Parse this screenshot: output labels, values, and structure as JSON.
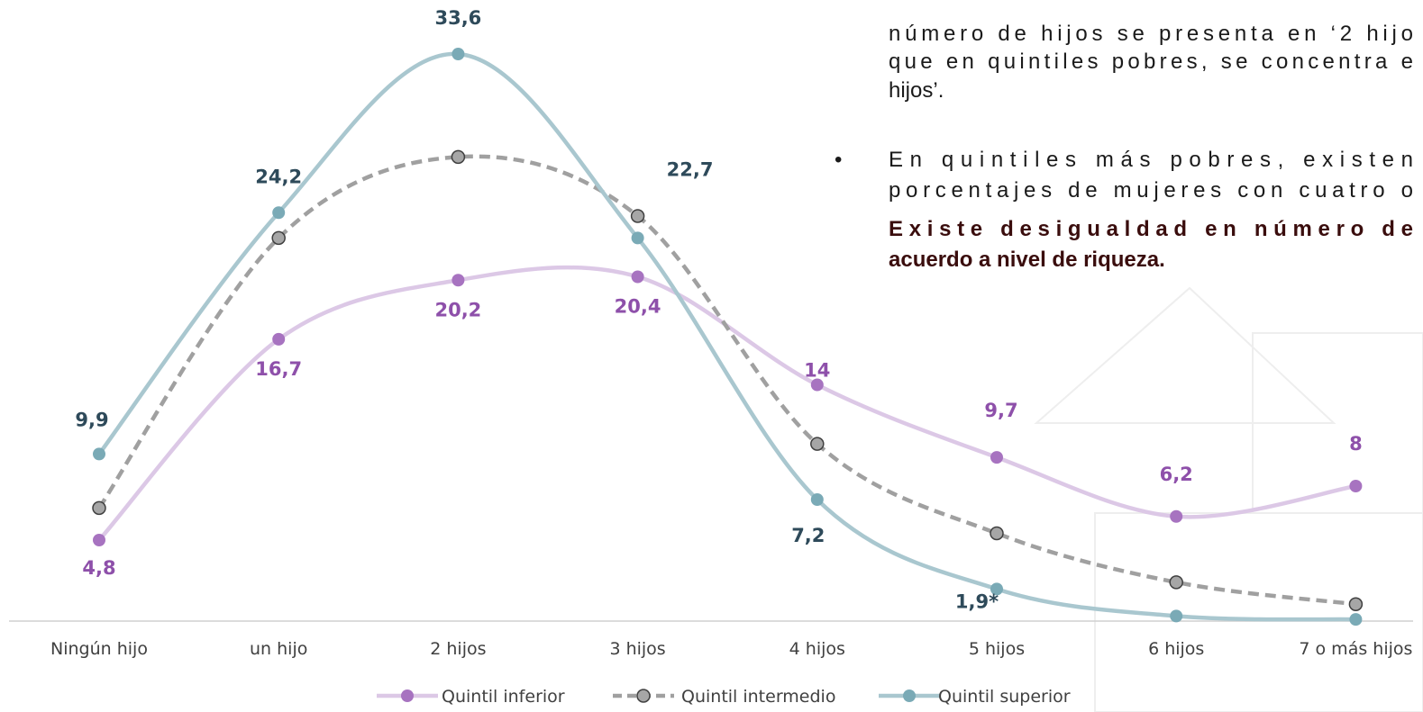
{
  "chart_data": {
    "type": "line",
    "categories": [
      "Ningún hijo",
      "un hijo",
      "2 hijos",
      "3 hijos",
      "4 hijos",
      "5 hijos",
      "6 hijos",
      "7 o más hijos"
    ],
    "ylim": [
      0,
      36.8
    ],
    "series": [
      {
        "name": "Quintil inferior",
        "color": "#a773c0",
        "line_color": "#dcc8e6",
        "dashed": false,
        "values": [
          4.8,
          16.7,
          20.2,
          20.4,
          14,
          9.7,
          6.2,
          8
        ],
        "value_labels": [
          "4,8",
          "16,7",
          "20,2",
          "20,4",
          "14",
          "9,7",
          "6,2",
          "8"
        ]
      },
      {
        "name": "Quintil intermedio",
        "color": "#a6a6a6",
        "line_color": "#a0a0a0",
        "dashed": true,
        "values": [
          6.7,
          22.7,
          27.5,
          24.0,
          10.5,
          5.2,
          2.3,
          1.0
        ]
      },
      {
        "name": "Quintil superior",
        "color": "#7aaab6",
        "line_color": "#a9c7cf",
        "dashed": false,
        "values": [
          9.9,
          24.2,
          33.6,
          22.7,
          7.2,
          1.9,
          0.3,
          0.1
        ],
        "value_labels": [
          "9,9",
          "24,2",
          "33,6",
          "22,7",
          "7,2",
          "1,9*",
          null,
          null
        ]
      }
    ]
  },
  "text": {
    "paragraph": [
      "número de hijos se presenta en ‘2 hijo",
      "que en quintiles pobres, se concentra e",
      "hijos’."
    ],
    "bullet": "•",
    "bullet_lines": [
      "En quintiles más pobres, existen",
      "porcentajes de mujeres con cuatro o"
    ],
    "bold_lines": [
      "Existe desigualdad en número de",
      "acuerdo a nivel de riqueza."
    ]
  }
}
